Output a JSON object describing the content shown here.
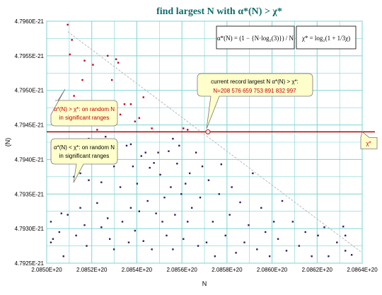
{
  "chart_data": {
    "type": "scatter",
    "title": "find largest N with α*(N) > χ*",
    "xlabel": "N",
    "ylabel": "(N)",
    "xlim": [
      2.085e+20,
      2.0865e+20
    ],
    "ylim": [
      4.7925e-21,
      4.796e-21
    ],
    "x_ticks": [
      "2.0850E+20",
      "2.0852E+20",
      "2.0854E+20",
      "2.0856E+20",
      "2.0858E+20",
      "2.0860E+20",
      "2.0862E+20",
      "2.0864E+20"
    ],
    "y_ticks": [
      "4.7925E-21",
      "4.7930E-21",
      "4.7935E-21",
      "4.7940E-21",
      "4.7945E-21",
      "4.7950E-21",
      "4.7955E-21",
      "4.7960E-21"
    ],
    "grid": true,
    "threshold": {
      "label": "χ*",
      "y": 4.7944e-21,
      "color": "#b00000"
    },
    "record_point": {
      "x": 2.08576659753892e+20,
      "y": 4.7944e-21
    },
    "trend_line": {
      "x": [
        2.0851e+20,
        2.0865e+20
      ],
      "y": [
        4.79585e-21,
        4.79265e-21
      ]
    },
    "formulas": {
      "alpha": "α*(N) = (1 − {N·log₂(3)}) / N",
      "chi": "χ* = log₂(1 + 1/3χ)"
    },
    "annotations": {
      "record": {
        "line1": "current record largest N  α*(N) > χ*:",
        "line2": "N=208 576 659 753 891 832 997"
      },
      "above": {
        "line1": "α*(N) > χ*: on random N",
        "line2": "in significant ranges"
      },
      "below": {
        "line1": "α*(N) < χ*: on random N",
        "line2": "in significant ranges"
      }
    },
    "points": [
      [
        2.08502e+20,
        4.7931e-21
      ],
      [
        2.08502e+20,
        4.7928e-21
      ],
      [
        2.08503e+20,
        4.79285e-21
      ],
      [
        2.08504e+20,
        4.7941e-21
      ],
      [
        2.08506e+20,
        4.79295e-21
      ],
      [
        2.08507e+20,
        4.79322e-21
      ],
      [
        2.08508e+20,
        4.7926e-21
      ],
      [
        2.0851e+20,
        4.79595e-21
      ],
      [
        2.0851e+20,
        4.7932e-21
      ],
      [
        2.08511e+20,
        4.79552e-21
      ],
      [
        2.08512e+20,
        4.79573e-21
      ],
      [
        2.08513e+20,
        4.79492e-21
      ],
      [
        2.08513e+20,
        4.79375e-21
      ],
      [
        2.08514e+20,
        4.79475e-21
      ],
      [
        2.08514e+20,
        4.7929e-21
      ],
      [
        2.08516e+20,
        4.7938e-21
      ],
      [
        2.08516e+20,
        4.7933e-21
      ],
      [
        2.08517e+20,
        4.79515e-21
      ],
      [
        2.08518e+20,
        4.79543e-21
      ],
      [
        2.08518e+20,
        4.79305e-21
      ],
      [
        2.08519e+20,
        4.7945e-21
      ],
      [
        2.08519e+20,
        4.79275e-21
      ],
      [
        2.0852e+20,
        4.79472e-21
      ],
      [
        2.0852e+20,
        4.7943e-21
      ],
      [
        2.0852e+20,
        4.7937e-21
      ],
      [
        2.08522e+20,
        4.79537e-21
      ],
      [
        2.08524e+20,
        4.79443e-21
      ],
      [
        2.08524e+20,
        4.79337e-21
      ],
      [
        2.08526e+20,
        4.79367e-21
      ],
      [
        2.08526e+20,
        4.79302e-21
      ],
      [
        2.08527e+20,
        4.7946e-21
      ],
      [
        2.08528e+20,
        4.79433e-21
      ],
      [
        2.08529e+20,
        4.7955e-21
      ],
      [
        2.08529e+20,
        4.79315e-21
      ],
      [
        2.0853e+20,
        4.79458e-21
      ],
      [
        2.0853e+20,
        4.79285e-21
      ],
      [
        2.08531e+20,
        4.79515e-21
      ],
      [
        2.08532e+20,
        4.7939e-21
      ],
      [
        2.08532e+20,
        4.7927e-21
      ],
      [
        2.08533e+20,
        4.79545e-21
      ],
      [
        2.08534e+20,
        4.7954e-21
      ],
      [
        2.08535e+20,
        4.79465e-21
      ],
      [
        2.08535e+20,
        4.7936e-21
      ],
      [
        2.08536e+20,
        4.7931e-21
      ],
      [
        2.08537e+20,
        4.7948e-21
      ],
      [
        2.08538e+20,
        4.7942e-21
      ],
      [
        2.08539e+20,
        4.7928e-21
      ],
      [
        2.0854e+20,
        4.7948e-21
      ],
      [
        2.0854e+20,
        4.79422e-21
      ],
      [
        2.0854e+20,
        4.7933e-21
      ],
      [
        2.08541e+20,
        4.7939e-21
      ],
      [
        2.08542e+20,
        4.79455e-21
      ],
      [
        2.08542e+20,
        4.79297e-21
      ],
      [
        2.08543e+20,
        4.79365e-21
      ],
      [
        2.08544e+20,
        4.7946e-21
      ],
      [
        2.08544e+20,
        4.79325e-21
      ],
      [
        2.08545e+20,
        4.79405e-21
      ],
      [
        2.08546e+20,
        4.7949e-21
      ],
      [
        2.08546e+20,
        4.79282e-21
      ],
      [
        2.08547e+20,
        4.7941e-21
      ],
      [
        2.08548e+20,
        4.7934e-21
      ],
      [
        2.08549e+20,
        4.79388e-21
      ],
      [
        2.0855e+20,
        4.79445e-21
      ],
      [
        2.0855e+20,
        4.7927e-21
      ],
      [
        2.08551e+20,
        4.79395e-21
      ],
      [
        2.08552e+20,
        4.79322e-21
      ],
      [
        2.08553e+20,
        4.7941e-21
      ],
      [
        2.08554e+20,
        4.79378e-21
      ],
      [
        2.08555e+20,
        4.7931e-21
      ],
      [
        2.08556e+20,
        4.79345e-21
      ],
      [
        2.08557e+20,
        4.7929e-21
      ],
      [
        2.08558e+20,
        4.79412e-21
      ],
      [
        2.08559e+20,
        4.7936e-21
      ],
      [
        2.0856e+20,
        4.7943e-21
      ],
      [
        2.0856e+20,
        4.7927e-21
      ],
      [
        2.08561e+20,
        4.7932e-21
      ],
      [
        2.08562e+20,
        4.79394e-21
      ],
      [
        2.08563e+20,
        4.7942e-21
      ],
      [
        2.08564e+20,
        4.7935e-21
      ],
      [
        2.08565e+20,
        4.79445e-21
      ],
      [
        2.08565e+20,
        4.79285e-21
      ],
      [
        2.08566e+20,
        4.79365e-21
      ],
      [
        2.08567e+20,
        4.79443e-21
      ],
      [
        2.08567e+20,
        4.7931e-21
      ],
      [
        2.08568e+20,
        4.7938e-21
      ],
      [
        2.08569e+20,
        4.7933e-21
      ],
      [
        2.08571e+20,
        4.7941e-21
      ],
      [
        2.08572e+20,
        4.79275e-21
      ],
      [
        2.08573e+20,
        4.79345e-21
      ],
      [
        2.08574e+20,
        4.7939e-21
      ],
      [
        2.08576e+20,
        4.7928e-21
      ],
      [
        2.08577e+20,
        4.7937e-21
      ],
      [
        2.08579e+20,
        4.7931e-21
      ],
      [
        2.0858e+20,
        4.7926e-21
      ],
      [
        2.08582e+20,
        4.7935e-21
      ],
      [
        2.08583e+20,
        4.79393e-21
      ],
      [
        2.08585e+20,
        4.7929e-21
      ],
      [
        2.08587e+20,
        4.7932e-21
      ],
      [
        2.08588e+20,
        4.7936e-21
      ],
      [
        2.0859e+20,
        4.79265e-21
      ],
      [
        2.08592e+20,
        4.79338e-21
      ],
      [
        2.08594e+20,
        4.7928e-21
      ],
      [
        2.08596e+20,
        4.79305e-21
      ],
      [
        2.08598e+20,
        4.7938e-21
      ],
      [
        2.086e+20,
        4.7927e-21
      ],
      [
        2.08602e+20,
        4.7933e-21
      ],
      [
        2.08604e+20,
        4.79295e-21
      ],
      [
        2.08606e+20,
        4.7926e-21
      ],
      [
        2.08608e+20,
        4.7931e-21
      ],
      [
        2.0861e+20,
        4.79285e-21
      ],
      [
        2.08612e+20,
        4.7934e-21
      ],
      [
        2.08614e+20,
        4.79268e-21
      ],
      [
        2.08617e+20,
        4.7931e-21
      ],
      [
        2.0862e+20,
        4.79275e-21
      ],
      [
        2.08623e+20,
        4.79295e-21
      ],
      [
        2.08626e+20,
        4.7926e-21
      ],
      [
        2.08629e+20,
        4.7929e-21
      ],
      [
        2.08632e+20,
        4.79302e-21
      ],
      [
        2.08634e+20,
        4.7926e-21
      ],
      [
        2.08638e+20,
        4.7928e-21
      ],
      [
        2.08641e+20,
        4.79303e-21
      ],
      [
        2.08642e+20,
        4.7929e-21
      ],
      [
        2.08642e+20,
        4.79268e-21
      ],
      [
        2.08645e+20,
        4.79262e-21
      ]
    ]
  }
}
